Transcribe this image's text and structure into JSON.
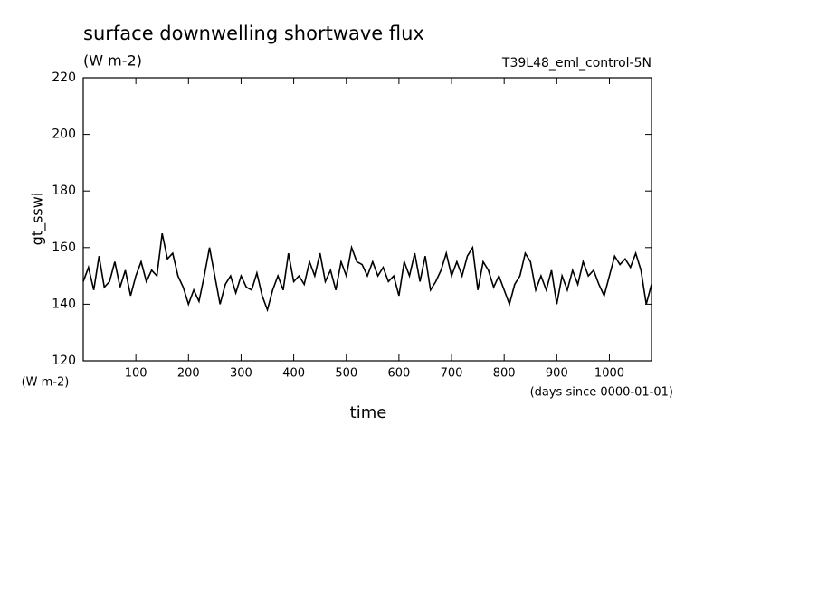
{
  "chart_data": {
    "type": "line",
    "title": "surface downwelling shortwave flux",
    "subtitle": "(W m-2)",
    "annotation": "T39L48_eml_control-5N",
    "y_label": "gt_sswi",
    "y_unit": "(W m-2)",
    "x_label": "time",
    "x_unit": "(days since 0000-01-01)",
    "x": [
      0,
      10,
      20,
      30,
      40,
      50,
      60,
      70,
      80,
      90,
      100,
      110,
      120,
      130,
      140,
      150,
      160,
      170,
      180,
      190,
      200,
      210,
      220,
      230,
      240,
      250,
      260,
      270,
      280,
      290,
      300,
      310,
      320,
      330,
      340,
      350,
      360,
      370,
      380,
      390,
      400,
      410,
      420,
      430,
      440,
      450,
      460,
      470,
      480,
      490,
      500,
      510,
      520,
      530,
      540,
      550,
      560,
      570,
      580,
      590,
      600,
      610,
      620,
      630,
      640,
      650,
      660,
      670,
      680,
      690,
      700,
      710,
      720,
      730,
      740,
      750,
      760,
      770,
      780,
      790,
      800,
      810,
      820,
      830,
      840,
      850,
      860,
      870,
      880,
      890,
      900,
      910,
      920,
      930,
      940,
      950,
      960,
      970,
      980,
      990,
      1000,
      1010,
      1020,
      1030,
      1040,
      1050,
      1060,
      1070,
      1080
    ],
    "series": [
      {
        "name": "gt_sswi",
        "color": "#000000",
        "values": [
          148,
          153,
          145,
          157,
          146,
          148,
          155,
          146,
          152,
          143,
          150,
          155,
          148,
          152,
          150,
          165,
          156,
          158,
          150,
          146,
          140,
          145,
          141,
          150,
          160,
          150,
          140,
          147,
          150,
          144,
          150,
          146,
          145,
          151,
          143,
          138,
          145,
          150,
          145,
          158,
          148,
          150,
          147,
          155,
          150,
          158,
          148,
          152,
          145,
          155,
          150,
          160,
          155,
          154,
          150,
          155,
          150,
          153,
          148,
          150,
          143,
          155,
          150,
          158,
          148,
          157,
          145,
          148,
          152,
          158,
          150,
          155,
          150,
          157,
          160,
          145,
          155,
          152,
          146,
          150,
          145,
          140,
          147,
          150,
          158,
          155,
          145,
          150,
          145,
          152,
          140,
          150,
          145,
          152,
          147,
          155,
          150,
          152,
          147,
          143,
          150,
          157,
          154,
          156,
          153,
          158,
          152,
          140,
          147
        ]
      }
    ],
    "xlim": [
      0,
      1080
    ],
    "ylim": [
      120,
      220
    ],
    "xticks": [
      100,
      200,
      300,
      400,
      500,
      600,
      700,
      800,
      900,
      1000
    ],
    "yticks": [
      120,
      140,
      160,
      180,
      200,
      220
    ]
  }
}
